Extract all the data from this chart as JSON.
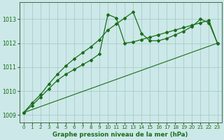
{
  "title": "Graphe pression niveau de la mer (hPa)",
  "background_color": "#cce8e8",
  "grid_color": "#aacccc",
  "line_color": "#1a6e1a",
  "xlim": [
    -0.5,
    23.5
  ],
  "ylim": [
    1008.7,
    1013.7
  ],
  "yticks": [
    1009,
    1010,
    1011,
    1012,
    1013
  ],
  "xticks": [
    0,
    1,
    2,
    3,
    4,
    5,
    6,
    7,
    8,
    9,
    10,
    11,
    12,
    13,
    14,
    15,
    16,
    17,
    18,
    19,
    20,
    21,
    22,
    23
  ],
  "line1_x": [
    0,
    1,
    2,
    3,
    4,
    5,
    6,
    7,
    8,
    9,
    10,
    11,
    12,
    13,
    14,
    15,
    16,
    17,
    18,
    19,
    20,
    21,
    22,
    23
  ],
  "line1_y": [
    1009.1,
    1009.5,
    1009.85,
    1010.3,
    1010.7,
    1011.05,
    1011.35,
    1011.6,
    1011.85,
    1012.15,
    1012.55,
    1012.8,
    1013.05,
    1013.3,
    1012.4,
    1012.1,
    1012.1,
    1012.2,
    1012.35,
    1012.5,
    1012.7,
    1013.0,
    1012.85,
    1012.0
  ],
  "line2_x": [
    0,
    1,
    2,
    3,
    4,
    5,
    6,
    7,
    8,
    9,
    10,
    11,
    12,
    13,
    14,
    15,
    16,
    17,
    18,
    19,
    20,
    21,
    22,
    23
  ],
  "line2_y": [
    1009.1,
    1009.4,
    1009.75,
    1010.1,
    1010.45,
    1010.7,
    1010.9,
    1011.1,
    1011.3,
    1011.55,
    1013.2,
    1013.05,
    1012.0,
    1012.05,
    1012.15,
    1012.25,
    1012.35,
    1012.45,
    1012.55,
    1012.65,
    1012.75,
    1012.85,
    1012.95,
    1012.0
  ],
  "line3_x": [
    0,
    23
  ],
  "line3_y": [
    1009.1,
    1012.0
  ]
}
